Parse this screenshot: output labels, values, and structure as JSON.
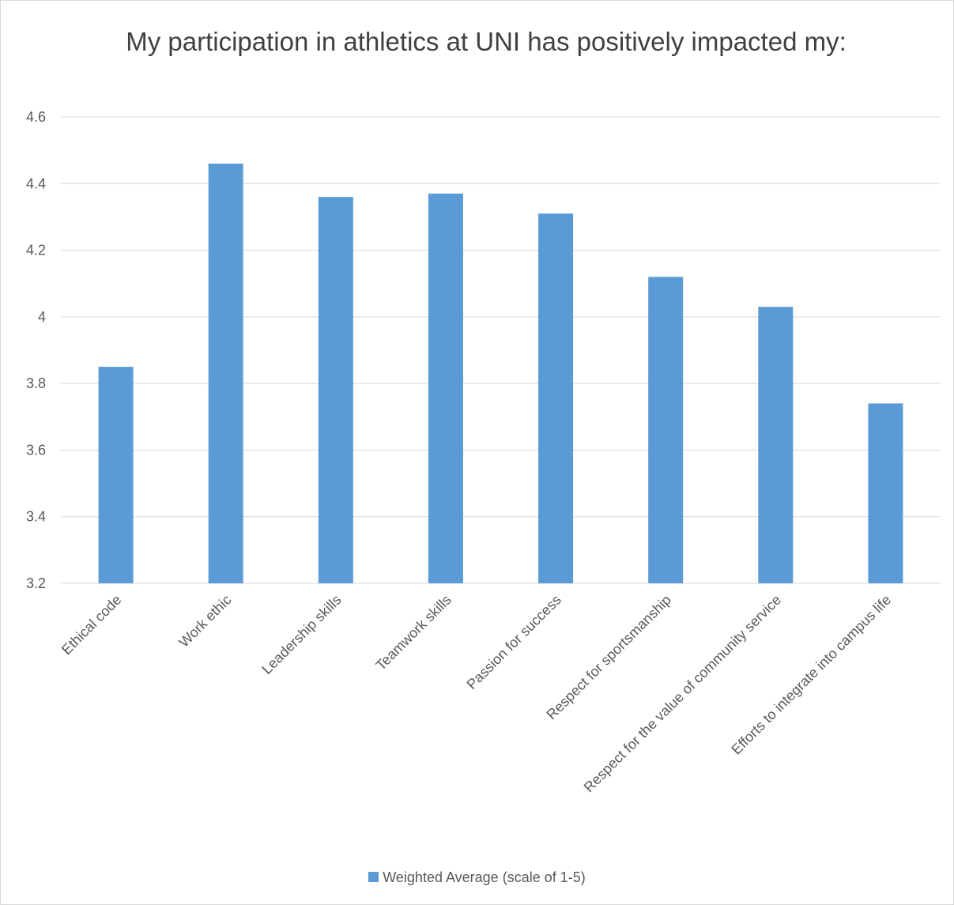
{
  "chart_data": {
    "type": "bar",
    "title": "My participation in athletics at UNI has positively impacted my:",
    "categories": [
      "Ethical code",
      "Work ethic",
      "Leadership skills",
      "Teamwork skills",
      "Passion for success",
      "Respect for sportsmanship",
      "Respect for the value of community service",
      "Efforts to integrate into campus life"
    ],
    "series": [
      {
        "name": "Weighted Average (scale of 1-5)",
        "values": [
          3.85,
          4.46,
          4.36,
          4.37,
          4.31,
          4.12,
          4.03,
          3.74
        ],
        "color": "#5b9bd5"
      }
    ],
    "yticks": [
      "3.2",
      "3.4",
      "3.6",
      "3.8",
      "4",
      "4.2",
      "4.4",
      "4.6"
    ],
    "ylim": [
      3.2,
      4.6
    ],
    "xlabel": "",
    "ylabel": "",
    "grid": true,
    "legend_position": "bottom"
  }
}
